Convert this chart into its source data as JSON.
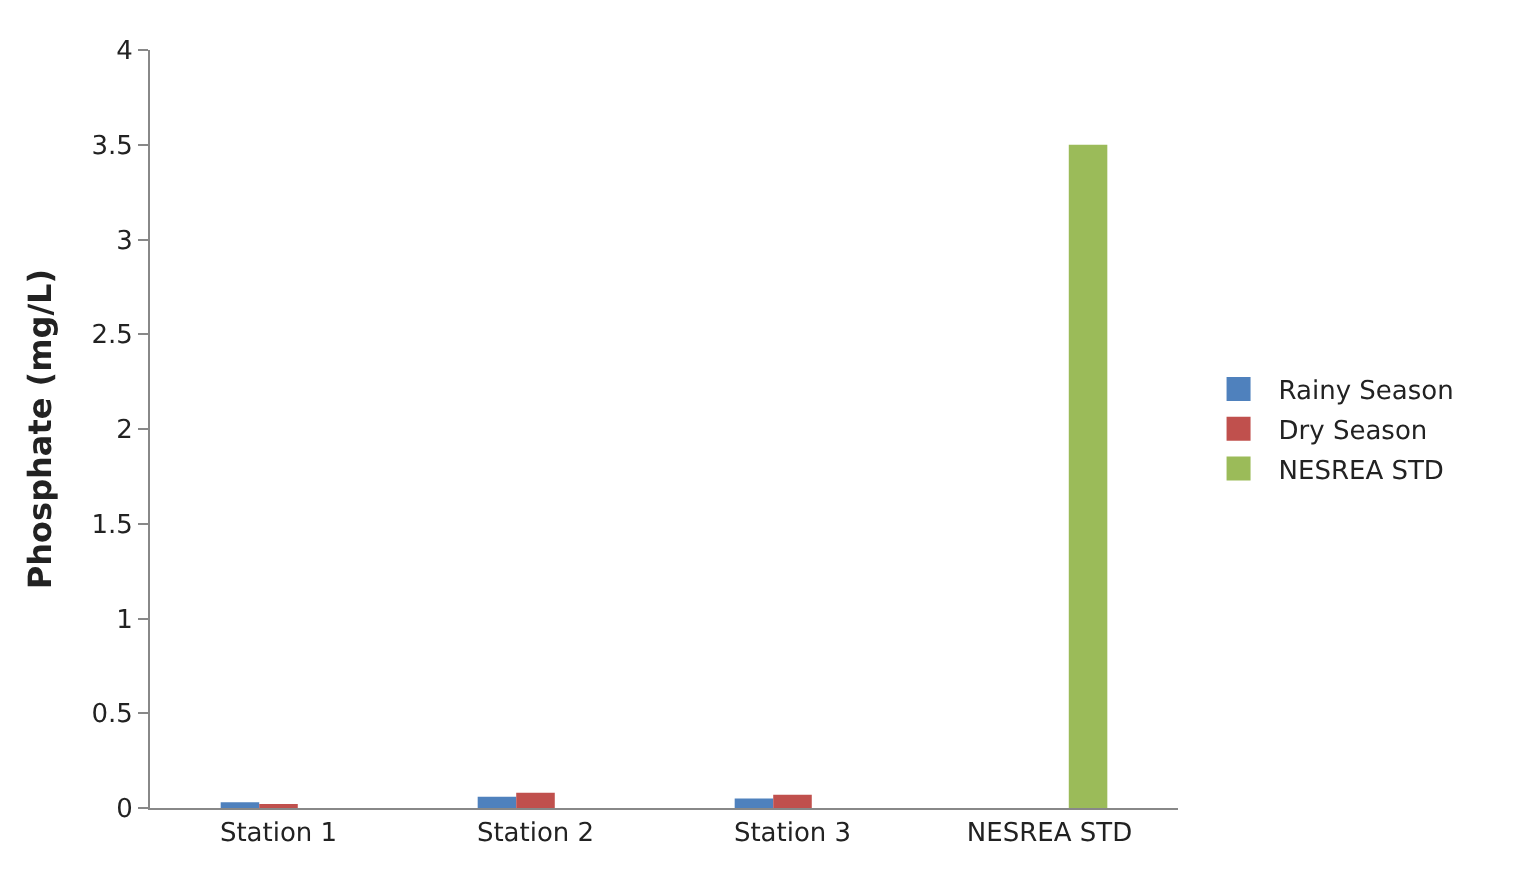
{
  "chart_data": {
    "type": "bar",
    "ylabel": "Phosphate (mg/L)",
    "categories": [
      "Station 1",
      "Station 2",
      "Station 3",
      "NESREA STD"
    ],
    "series": [
      {
        "name": "Rainy Season",
        "color": "#4f81bd",
        "values": [
          0.03,
          0.06,
          0.05,
          null
        ]
      },
      {
        "name": "Dry Season",
        "color": "#c0504d",
        "values": [
          0.02,
          0.08,
          0.07,
          null
        ]
      },
      {
        "name": "NESREA STD",
        "color": "#9bbb59",
        "values": [
          null,
          null,
          null,
          3.5
        ]
      }
    ],
    "ylim": [
      0,
      4
    ],
    "yticks": [
      0,
      0.5,
      1,
      1.5,
      2,
      2.5,
      3,
      3.5,
      4
    ],
    "legend": "right"
  }
}
